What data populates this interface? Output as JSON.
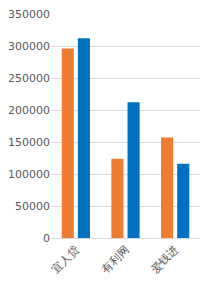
{
  "chart_data": {
    "type": "bar",
    "categories": [
      "宜人贷",
      "有利网",
      "爱钱进"
    ],
    "series": [
      {
        "color": "#ed7d31",
        "values": [
          296000,
          124000,
          157000
        ]
      },
      {
        "color": "#0070c0",
        "values": [
          312000,
          212000,
          116000
        ]
      }
    ],
    "ylim": [
      0,
      350000
    ],
    "yticks": [
      0,
      50000,
      100000,
      150000,
      200000,
      250000,
      300000,
      350000
    ],
    "grid": true
  }
}
